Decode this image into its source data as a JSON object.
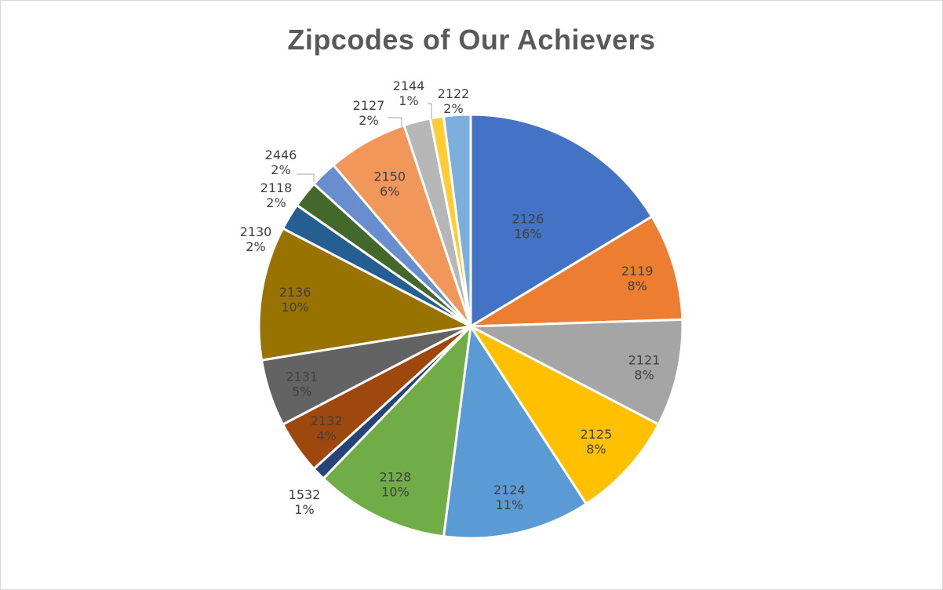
{
  "chart_data": {
    "type": "pie",
    "title": "Zipcodes of Our Achievers",
    "start_angle_deg": 0,
    "direction": "clockwise",
    "slices": [
      {
        "label": "2126",
        "value": 16,
        "pct_label": "16%",
        "color": "#4472C4",
        "label_color": "#404040"
      },
      {
        "label": "2119",
        "value": 8,
        "pct_label": "8%",
        "color": "#ED7D31",
        "label_color": "#404040"
      },
      {
        "label": "2121",
        "value": 8,
        "pct_label": "8%",
        "color": "#A5A5A5",
        "label_color": "#404040"
      },
      {
        "label": "2125",
        "value": 8,
        "pct_label": "8%",
        "color": "#FFC000",
        "label_color": "#404040"
      },
      {
        "label": "2124",
        "value": 11,
        "pct_label": "11%",
        "color": "#5B9BD5",
        "label_color": "#404040"
      },
      {
        "label": "2128",
        "value": 10,
        "pct_label": "10%",
        "color": "#70AD47",
        "label_color": "#404040"
      },
      {
        "label": "1532",
        "value": 1,
        "pct_label": "1%",
        "color": "#264478",
        "label_color": "#404040"
      },
      {
        "label": "2132",
        "value": 4,
        "pct_label": "4%",
        "color": "#9E480E",
        "label_color": "#404040"
      },
      {
        "label": "2131",
        "value": 5,
        "pct_label": "5%",
        "color": "#636363",
        "label_color": "#404040"
      },
      {
        "label": "2136",
        "value": 10,
        "pct_label": "10%",
        "color": "#997300",
        "label_color": "#404040"
      },
      {
        "label": "2130",
        "value": 2,
        "pct_label": "2%",
        "color": "#255E91",
        "label_color": "#404040"
      },
      {
        "label": "2118",
        "value": 2,
        "pct_label": "2%",
        "color": "#43682B",
        "label_color": "#404040"
      },
      {
        "label": "2446",
        "value": 2,
        "pct_label": "2%",
        "color": "#698ED0",
        "label_color": "#404040"
      },
      {
        "label": "2150",
        "value": 6,
        "pct_label": "6%",
        "color": "#F1975A",
        "label_color": "#404040"
      },
      {
        "label": "2127",
        "value": 2,
        "pct_label": "2%",
        "color": "#B7B7B7",
        "label_color": "#404040"
      },
      {
        "label": "2144",
        "value": 1,
        "pct_label": "1%",
        "color": "#FFCD33",
        "label_color": "#404040"
      },
      {
        "label": "2122",
        "value": 2,
        "pct_label": "2%",
        "color": "#7CAFDD",
        "label_color": "#404040"
      }
    ]
  }
}
